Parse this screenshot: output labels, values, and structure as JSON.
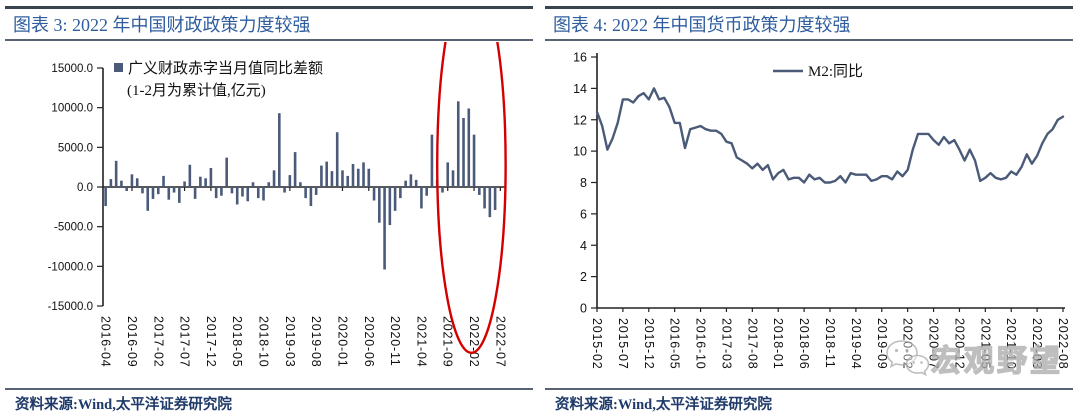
{
  "panels": {
    "left": {
      "title": "图表 3: 2022 年中国财政政策力度较强",
      "source": "资料来源:Wind,太平洋证券研究院"
    },
    "right": {
      "title": "图表 4: 2022 年中国货币政策力度较强",
      "source": "资料来源:Wind,太平洋证券研究院"
    }
  },
  "watermark": {
    "text": "宏观野望",
    "icon": "wechat-speech-bubbles"
  },
  "colors": {
    "title_blue": "#2F5D9E",
    "source_navy": "#1F3A68",
    "series_slate": "#4A5A78",
    "highlight_red": "#D40000",
    "axis_black": "#222222",
    "watermark_gray": "#AEAEAE"
  },
  "chart_data": [
    {
      "type": "bar",
      "title": "2022 年中国财政政策力度较强",
      "legend": {
        "line1": "广义财政赤字当月值同比差额",
        "line2": "(1-2月为累计值,亿元)"
      },
      "x_start": "2016-04",
      "x_freq": "monthly",
      "values": [
        -2400,
        1000,
        3300,
        800,
        -500,
        1600,
        1100,
        -800,
        -3000,
        -1500,
        -900,
        1400,
        -1600,
        -700,
        -2000,
        700,
        2800,
        -1500,
        1300,
        1100,
        2400,
        -1400,
        -1100,
        3700,
        -800,
        -2200,
        -1200,
        -1800,
        600,
        -1400,
        -1700,
        600,
        2100,
        9300,
        -700,
        1500,
        4400,
        600,
        -1400,
        -2400,
        -1000,
        2700,
        3200,
        2000,
        6900,
        2100,
        1400,
        2900,
        2300,
        3100,
        2300,
        -1700,
        -4500,
        -10400,
        -4800,
        -3000,
        -1400,
        800,
        1600,
        900,
        -2700,
        -1100,
        6600,
        900,
        -700,
        3100,
        2100,
        10800,
        8700,
        9900,
        6600,
        -1000,
        -2700,
        -3800,
        -2900
      ],
      "ylim": [
        -15000,
        15000
      ],
      "ytick_labels": [
        "15000.0",
        "10000.0",
        "5000.0",
        "0.0",
        "-5000.0",
        "-10000.0",
        "-15000.0"
      ],
      "xtick_labels": [
        "2016-04",
        "2016-09",
        "2017-02",
        "2017-07",
        "2017-12",
        "2018-05",
        "2018-10",
        "2019-03",
        "2019-08",
        "2020-01",
        "2020-06",
        "2020-11",
        "2021-04",
        "2021-09",
        "2022-02",
        "2022-07"
      ],
      "xtick_every": 5,
      "bar_color": "#4A5A78",
      "grid": false,
      "legend_position": "top-left",
      "annotation": {
        "shape": "ellipse",
        "color": "#D40000",
        "cx_month": 69.5,
        "rx_months": 6.5,
        "cy_value": 2800,
        "ry_value": 11850
      }
    },
    {
      "type": "line",
      "title": "2022 年中国货币政策力度较强",
      "series": [
        {
          "name": "M2:同比",
          "color": "#4A5A78",
          "values": [
            12.5,
            11.6,
            10.1,
            10.8,
            11.8,
            13.3,
            13.3,
            13.1,
            13.5,
            13.7,
            13.3,
            14.0,
            13.3,
            13.4,
            12.8,
            11.8,
            11.8,
            10.2,
            11.4,
            11.5,
            11.6,
            11.4,
            11.3,
            11.3,
            11.1,
            10.6,
            10.5,
            9.6,
            9.4,
            9.2,
            8.9,
            9.2,
            8.8,
            9.1,
            8.2,
            8.6,
            8.8,
            8.2,
            8.3,
            8.3,
            8.0,
            8.5,
            8.2,
            8.3,
            8.0,
            8.0,
            8.1,
            8.4,
            8.0,
            8.6,
            8.5,
            8.5,
            8.5,
            8.1,
            8.2,
            8.4,
            8.4,
            8.2,
            8.7,
            8.4,
            8.8,
            10.1,
            11.1,
            11.1,
            11.1,
            10.7,
            10.4,
            10.9,
            10.5,
            10.7,
            10.1,
            9.4,
            10.1,
            9.4,
            8.1,
            8.3,
            8.6,
            8.3,
            8.2,
            8.3,
            8.7,
            8.5,
            9.0,
            9.8,
            9.2,
            9.7,
            10.5,
            11.1,
            11.4,
            12.0,
            12.2
          ]
        }
      ],
      "x_start": "2015-02",
      "x_freq": "monthly",
      "ylim": [
        0,
        16
      ],
      "ytick_labels": [
        "16",
        "14",
        "12",
        "10",
        "8",
        "6",
        "4",
        "2",
        "0"
      ],
      "xtick_labels": [
        "2015-02",
        "2015-07",
        "2015-12",
        "2016-05",
        "2016-10",
        "2017-03",
        "2017-08",
        "2018-01",
        "2018-06",
        "2018-11",
        "2019-04",
        "2019-09",
        "2020-02",
        "2020-07",
        "2020-12",
        "2021-05",
        "2021-10",
        "2022-03",
        "2022-08"
      ],
      "xtick_every": 5,
      "grid": false,
      "legend_position": "top-center"
    }
  ]
}
